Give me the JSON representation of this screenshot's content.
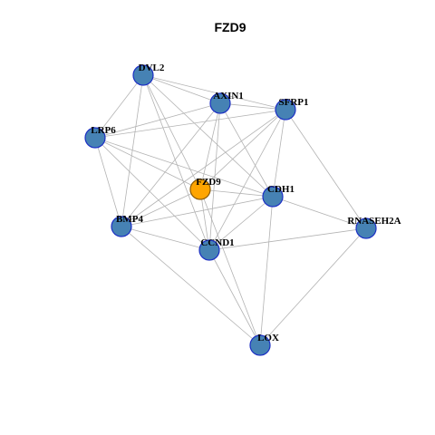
{
  "title": "FZD9",
  "colors": {
    "node_default": "#4682B4",
    "node_default_border": "#1c2fc4",
    "node_focus": "#FFA500",
    "node_focus_border": "#8b5a00",
    "edge": "#b3b3b3"
  },
  "nodes": [
    {
      "id": "DVL2",
      "label": "DVL2",
      "focus": false
    },
    {
      "id": "AXIN1",
      "label": "AXIN1",
      "focus": false
    },
    {
      "id": "SFRP1",
      "label": "SFRP1",
      "focus": false
    },
    {
      "id": "LRP6",
      "label": "LRP6",
      "focus": false
    },
    {
      "id": "FZD9",
      "label": "FZD9",
      "focus": true
    },
    {
      "id": "CDH1",
      "label": "CDH1",
      "focus": false
    },
    {
      "id": "BMP4",
      "label": "BMP4",
      "focus": false
    },
    {
      "id": "CCND1",
      "label": "CCND1",
      "focus": false
    },
    {
      "id": "RNASEH2A",
      "label": "RNASEH2A",
      "focus": false
    },
    {
      "id": "LOX",
      "label": "LOX",
      "focus": false
    }
  ],
  "edges": [
    [
      "DVL2",
      "AXIN1"
    ],
    [
      "DVL2",
      "SFRP1"
    ],
    [
      "DVL2",
      "LRP6"
    ],
    [
      "DVL2",
      "FZD9"
    ],
    [
      "DVL2",
      "CDH1"
    ],
    [
      "DVL2",
      "BMP4"
    ],
    [
      "DVL2",
      "CCND1"
    ],
    [
      "AXIN1",
      "SFRP1"
    ],
    [
      "AXIN1",
      "LRP6"
    ],
    [
      "AXIN1",
      "FZD9"
    ],
    [
      "AXIN1",
      "CDH1"
    ],
    [
      "AXIN1",
      "BMP4"
    ],
    [
      "AXIN1",
      "CCND1"
    ],
    [
      "SFRP1",
      "LRP6"
    ],
    [
      "SFRP1",
      "FZD9"
    ],
    [
      "SFRP1",
      "CDH1"
    ],
    [
      "SFRP1",
      "BMP4"
    ],
    [
      "SFRP1",
      "CCND1"
    ],
    [
      "SFRP1",
      "RNASEH2A"
    ],
    [
      "LRP6",
      "FZD9"
    ],
    [
      "LRP6",
      "CDH1"
    ],
    [
      "LRP6",
      "BMP4"
    ],
    [
      "LRP6",
      "CCND1"
    ],
    [
      "FZD9",
      "CDH1"
    ],
    [
      "FZD9",
      "BMP4"
    ],
    [
      "FZD9",
      "CCND1"
    ],
    [
      "FZD9",
      "LOX"
    ],
    [
      "CDH1",
      "BMP4"
    ],
    [
      "CDH1",
      "CCND1"
    ],
    [
      "CDH1",
      "RNASEH2A"
    ],
    [
      "CDH1",
      "LOX"
    ],
    [
      "BMP4",
      "CCND1"
    ],
    [
      "BMP4",
      "LOX"
    ],
    [
      "CCND1",
      "RNASEH2A"
    ],
    [
      "CCND1",
      "LOX"
    ],
    [
      "RNASEH2A",
      "LOX"
    ]
  ]
}
